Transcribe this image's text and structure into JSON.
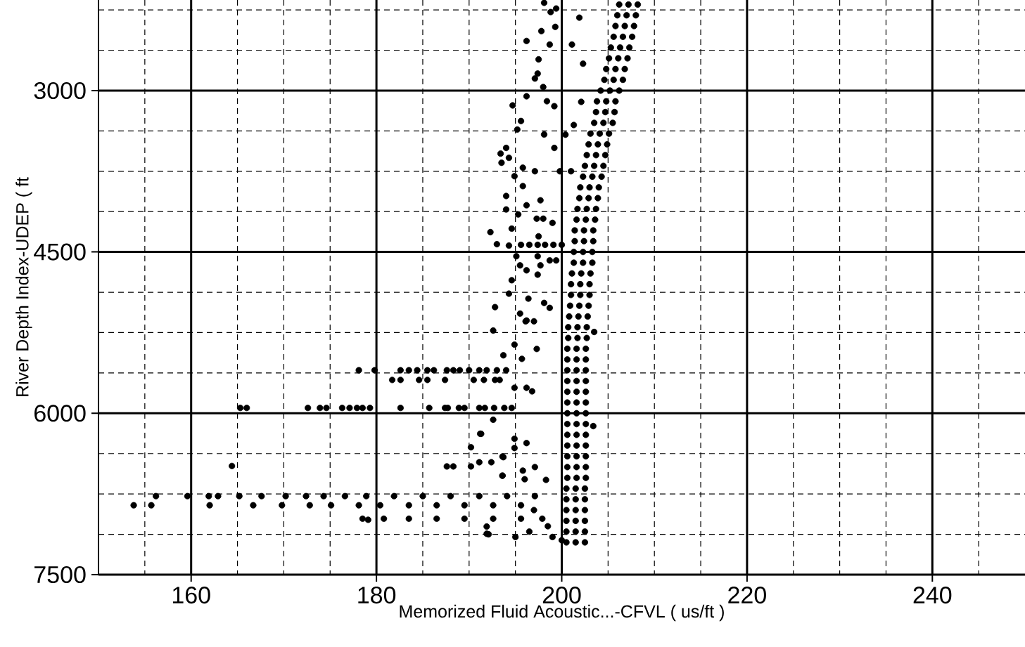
{
  "chart_data": {
    "type": "scatter",
    "xlabel": "Memorized Fluid Acoustic...-CFVL ( us/ft )",
    "ylabel": "River Depth Index-UDEP ( ft",
    "color": "#000000",
    "marker": "circle",
    "grid": true,
    "xlim": [
      150,
      250
    ],
    "ylim": [
      7500,
      2158
    ],
    "xticks": [
      {
        "value": 155,
        "label": null
      },
      160,
      {
        "value": 165,
        "label": null
      },
      {
        "value": 170,
        "label": null
      },
      {
        "value": 175,
        "label": null
      },
      180,
      {
        "value": 185,
        "label": null
      },
      {
        "value": 190,
        "label": null
      },
      {
        "value": 195,
        "label": null
      },
      200,
      {
        "value": 205,
        "label": null
      },
      {
        "value": 210,
        "label": null
      },
      {
        "value": 215,
        "label": null
      },
      220,
      {
        "value": 225,
        "label": null
      },
      {
        "value": 230,
        "label": null
      },
      {
        "value": 235,
        "label": null
      },
      240,
      {
        "value": 245,
        "label": null
      }
    ],
    "yticks": [
      {
        "value": 2250,
        "label": null
      },
      {
        "value": 2625,
        "label": null
      },
      3000,
      {
        "value": 3375,
        "label": null
      },
      {
        "value": 3750,
        "label": null
      },
      {
        "value": 4125,
        "label": null
      },
      4500,
      {
        "value": 4875,
        "label": null
      },
      {
        "value": 5250,
        "label": null
      },
      {
        "value": 5625,
        "label": null
      },
      6000,
      {
        "value": 6375,
        "label": null
      },
      {
        "value": 6750,
        "label": null
      },
      {
        "value": 7125,
        "label": null
      },
      7500
    ],
    "x": [
      206.2,
      207.2,
      208.2,
      206.0,
      207.0,
      208.0,
      205.8,
      206.8,
      207.8,
      205.6,
      206.6,
      207.6,
      205.3,
      206.3,
      207.3,
      205.1,
      206.1,
      207.1,
      204.8,
      205.8,
      206.8,
      204.6,
      205.6,
      206.6,
      204.2,
      205.2,
      206.2,
      203.8,
      204.8,
      205.8,
      203.7,
      204.7,
      205.7,
      203.5,
      204.5,
      205.5,
      203.1,
      204.1,
      205.1,
      202.9,
      203.9,
      204.9,
      202.7,
      203.7,
      204.7,
      202.5,
      203.5,
      204.5,
      202.3,
      203.3,
      204.3,
      202.0,
      203.0,
      204.0,
      201.9,
      202.9,
      203.9,
      201.7,
      202.7,
      203.7,
      201.6,
      202.6,
      203.6,
      201.4,
      202.4,
      203.4,
      201.4,
      202.4,
      203.4,
      201.3,
      202.3,
      203.3,
      201.3,
      202.3,
      203.3,
      201.1,
      202.1,
      203.1,
      201.0,
      202.0,
      203.0,
      201.0,
      202.0,
      203.0,
      200.9,
      201.9,
      202.9,
      200.8,
      201.8,
      202.8,
      200.7,
      201.7,
      202.7,
      200.7,
      201.7,
      202.7,
      200.6,
      201.6,
      202.6,
      200.6,
      201.6,
      202.6,
      200.6,
      201.6,
      202.6,
      200.6,
      201.6,
      202.6,
      200.6,
      201.6,
      202.6,
      200.6,
      201.6,
      202.6,
      200.6,
      201.6,
      202.6,
      200.6,
      201.6,
      202.6,
      200.6,
      201.6,
      202.6,
      200.6,
      201.6,
      202.6,
      200.6,
      201.6,
      202.6,
      200.6,
      201.6,
      202.6,
      200.6,
      201.6,
      202.6,
      200.5,
      201.5,
      202.5,
      200.5,
      201.5,
      202.5,
      200.5,
      201.5,
      202.5,
      200.5,
      201.5,
      202.5,
      200.5,
      201.5,
      202.5,
      200.5,
      201.5,
      202.5,
      198.1,
      199.4,
      198.8,
      199.3,
      197.8,
      196.2,
      198.7,
      201.1,
      197.5,
      197.4,
      197.1,
      198.0,
      196.2,
      194.7,
      198.4,
      199.2,
      195.6,
      195.2,
      194.0,
      193.4,
      193.5,
      194.3,
      198.1,
      199.2,
      202.1,
      201.9,
      202.3,
      195.8,
      197.1,
      194.9,
      195.8,
      194.0,
      197.7,
      196.2,
      194.0,
      195.3,
      197.3,
      198.0,
      199.0,
      194.6,
      192.3,
      197.5,
      193.0,
      194.3,
      195.6,
      196.5,
      197.4,
      198.2,
      199.1,
      200.0,
      195.1,
      197.4,
      195.5,
      196.2,
      197.7,
      198.7,
      199.4,
      197.4,
      194.6,
      194.3,
      196.4,
      198.1,
      192.8,
      198.7,
      195.5,
      196.1,
      197.0,
      199.8,
      201.0,
      200.4,
      201.3,
      192.6,
      193.7,
      196.2,
      195.7,
      194.9,
      197.3,
      196.2,
      196.8,
      194.9,
      192.6,
      191.3,
      194.9,
      196.2,
      194.9,
      193.7,
      197.1,
      195.8,
      193.6,
      196.0,
      198.3,
      203.4,
      203.5,
      197.0,
      198.5,
      199.0,
      200.0,
      196.5,
      195.0,
      178.1,
      179.8,
      182.6,
      183.5,
      184.4,
      185.5,
      186.2,
      187.6,
      188.3,
      189.0,
      190.0,
      191.1,
      191.9,
      193.0,
      194.0,
      181.7,
      182.6,
      184.6,
      185.5,
      187.4,
      190.5,
      191.6,
      192.8,
      193.3,
      165.3,
      166.0,
      172.6,
      173.9,
      174.6,
      176.3,
      177.1,
      177.9,
      178.5,
      179.3,
      182.6,
      185.7,
      187.4,
      187.7,
      188.9,
      189.5,
      191.1,
      191.7,
      192.7,
      193.8,
      194.6,
      156.2,
      159.6,
      161.9,
      162.9,
      165.2,
      167.6,
      170.2,
      172.4,
      174.3,
      176.6,
      178.9,
      181.9,
      185.0,
      188.0,
      191.1,
      194.1,
      197.1,
      153.8,
      155.7,
      162.0,
      166.7,
      169.8,
      172.8,
      175.1,
      178.1,
      180.4,
      183.5,
      186.5,
      189.5,
      192.6,
      195.6,
      178.5,
      180.8,
      183.5,
      186.5,
      189.5,
      192.6,
      195.6,
      197.9,
      164.4,
      192.1,
      191.2,
      190.2,
      193.6,
      187.6,
      188.3,
      190.2,
      191.1,
      192.4,
      191.9,
      191.9,
      193.6,
      179.1
    ],
    "values": [
      2200,
      2200,
      2200,
      2300,
      2300,
      2300,
      2400,
      2400,
      2400,
      2500,
      2500,
      2500,
      2600,
      2600,
      2600,
      2700,
      2700,
      2700,
      2800,
      2800,
      2800,
      2900,
      2900,
      2900,
      3000,
      3000,
      3000,
      3100,
      3100,
      3100,
      3200,
      3200,
      3200,
      3300,
      3300,
      3300,
      3400,
      3400,
      3400,
      3500,
      3500,
      3500,
      3600,
      3600,
      3600,
      3700,
      3700,
      3700,
      3800,
      3800,
      3800,
      3900,
      3900,
      3900,
      4000,
      4000,
      4000,
      4100,
      4100,
      4100,
      4200,
      4200,
      4200,
      4300,
      4300,
      4300,
      4400,
      4400,
      4400,
      4500,
      4500,
      4500,
      4600,
      4600,
      4600,
      4700,
      4700,
      4700,
      4800,
      4800,
      4800,
      4900,
      4900,
      4900,
      5000,
      5000,
      5000,
      5100,
      5100,
      5100,
      5200,
      5200,
      5200,
      5300,
      5300,
      5300,
      5400,
      5400,
      5400,
      5500,
      5500,
      5500,
      5600,
      5600,
      5600,
      5700,
      5700,
      5700,
      5800,
      5800,
      5800,
      5900,
      5900,
      5900,
      6000,
      6000,
      6000,
      6100,
      6100,
      6100,
      6200,
      6200,
      6200,
      6300,
      6300,
      6300,
      6400,
      6400,
      6400,
      6500,
      6500,
      6500,
      6600,
      6600,
      6600,
      6700,
      6700,
      6700,
      6800,
      6800,
      6800,
      6900,
      6900,
      6900,
      7000,
      7000,
      7000,
      7100,
      7100,
      7100,
      7200,
      7200,
      7200,
      2184,
      2237,
      2270,
      2408,
      2447,
      2539,
      2572,
      2572,
      2710,
      2842,
      2888,
      2967,
      3053,
      3138,
      3099,
      3145,
      3283,
      3362,
      3533,
      3586,
      3671,
      3625,
      3408,
      3533,
      3105,
      2322,
      2750,
      3717,
      3750,
      3796,
      3888,
      3980,
      4020,
      4066,
      4105,
      4151,
      4191,
      4191,
      4230,
      4283,
      4316,
      4355,
      4428,
      4441,
      4434,
      4434,
      4434,
      4434,
      4434,
      4434,
      4540,
      4540,
      4625,
      4671,
      4625,
      4579,
      4579,
      4711,
      4763,
      4888,
      4934,
      4974,
      5013,
      5020,
      5073,
      5145,
      5145,
      3750,
      3750,
      3410,
      3320,
      5231,
      5461,
      5138,
      5494,
      5362,
      5402,
      5763,
      5796,
      5763,
      6060,
      6191,
      6237,
      6277,
      6323,
      6408,
      6500,
      6533,
      6580,
      6613,
      6619,
      6119,
      5244,
      6900,
      7050,
      7150,
      7180,
      7100,
      7150,
      5600,
      5600,
      5600,
      5600,
      5600,
      5600,
      5600,
      5600,
      5600,
      5600,
      5600,
      5600,
      5600,
      5600,
      5600,
      5690,
      5690,
      5690,
      5690,
      5690,
      5690,
      5690,
      5690,
      5690,
      5950,
      5950,
      5950,
      5950,
      5950,
      5950,
      5950,
      5950,
      5950,
      5950,
      5950,
      5950,
      5950,
      5950,
      5950,
      5950,
      5950,
      5950,
      5950,
      5950,
      5950,
      6770,
      6770,
      6770,
      6770,
      6770,
      6770,
      6770,
      6770,
      6770,
      6770,
      6770,
      6770,
      6770,
      6770,
      6770,
      6770,
      6770,
      6855,
      6855,
      6855,
      6855,
      6855,
      6855,
      6855,
      6855,
      6855,
      6855,
      6855,
      6855,
      6855,
      6855,
      6980,
      6980,
      6980,
      6980,
      6980,
      6980,
      6980,
      6980,
      6490,
      7125,
      6190,
      6316,
      6402,
      6494,
      6494,
      6494,
      6455,
      6455,
      7120,
      7053,
      6580,
      6990
    ]
  }
}
